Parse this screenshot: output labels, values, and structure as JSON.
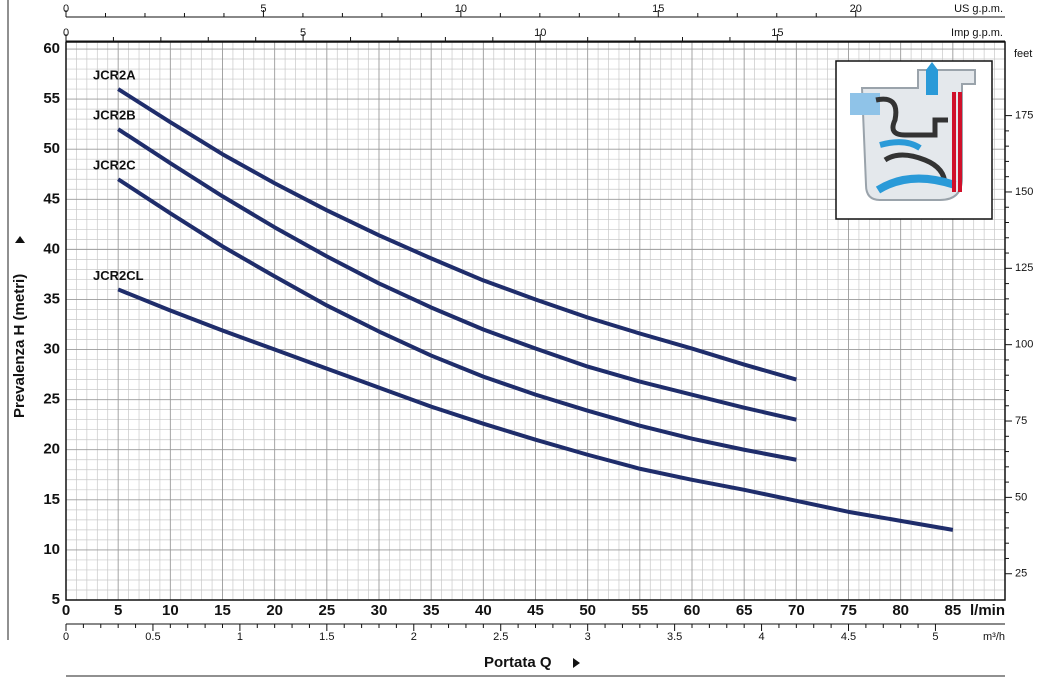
{
  "chart_data": {
    "type": "line",
    "x_label": "Portata Q",
    "y_label": "Prevalenza H (metri)",
    "x_unit": "l/min",
    "xlim": [
      0,
      90
    ],
    "xticks": [
      0,
      5,
      10,
      15,
      20,
      25,
      30,
      35,
      40,
      45,
      50,
      55,
      60,
      65,
      70,
      75,
      80,
      85
    ],
    "ylim": [
      5,
      60.7
    ],
    "yticks": [
      5,
      10,
      15,
      20,
      25,
      30,
      35,
      40,
      45,
      50,
      55,
      60
    ],
    "grid": true,
    "y2_label": "feet",
    "y2lim": [
      16.4,
      199.1
    ],
    "y2ticks": [
      25,
      50,
      75,
      100,
      125,
      150,
      175
    ],
    "top_axes": [
      {
        "label": "US g.p.m.",
        "lim": [
          0,
          23.78
        ],
        "ticks": [
          0,
          5,
          10,
          15,
          20
        ]
      },
      {
        "label": "Imp g.p.m.",
        "lim": [
          0,
          19.8
        ],
        "ticks": [
          0,
          5,
          10,
          15
        ]
      }
    ],
    "bottom_axis": {
      "label": "m³/h",
      "lim": [
        0,
        5.4
      ],
      "ticks": [
        0,
        0.5,
        1,
        1.5,
        2,
        2.5,
        3,
        3.5,
        4,
        4.5,
        5
      ]
    },
    "series": [
      {
        "name": "JCR2A",
        "color": "#1f2d6b",
        "x": [
          5,
          10,
          15,
          20,
          25,
          30,
          35,
          40,
          45,
          50,
          55,
          60,
          65,
          70
        ],
        "values": [
          56,
          52.7,
          49.5,
          46.6,
          43.9,
          41.4,
          39.1,
          36.9,
          35,
          33.2,
          31.6,
          30.1,
          28.5,
          27
        ]
      },
      {
        "name": "JCR2B",
        "color": "#1f2d6b",
        "x": [
          5,
          10,
          15,
          20,
          25,
          30,
          35,
          40,
          45,
          50,
          55,
          60,
          65,
          70
        ],
        "values": [
          52,
          48.6,
          45.3,
          42.2,
          39.3,
          36.6,
          34.2,
          32,
          30.1,
          28.3,
          26.8,
          25.5,
          24.2,
          23
        ]
      },
      {
        "name": "JCR2C",
        "color": "#1f2d6b",
        "x": [
          5,
          10,
          15,
          20,
          25,
          30,
          35,
          40,
          45,
          50,
          55,
          60,
          65,
          70
        ],
        "values": [
          47,
          43.6,
          40.3,
          37.3,
          34.4,
          31.8,
          29.4,
          27.3,
          25.5,
          23.9,
          22.4,
          21.1,
          20,
          19
        ]
      },
      {
        "name": "JCR2CL",
        "color": "#1f2d6b",
        "x": [
          5,
          10,
          15,
          20,
          25,
          30,
          35,
          40,
          45,
          50,
          55,
          60,
          65,
          70,
          75,
          80,
          85
        ],
        "values": [
          36,
          33.9,
          31.9,
          30,
          28.1,
          26.2,
          24.3,
          22.6,
          21,
          19.5,
          18.1,
          17,
          16,
          14.9,
          13.8,
          12.9,
          12
        ]
      }
    ]
  }
}
